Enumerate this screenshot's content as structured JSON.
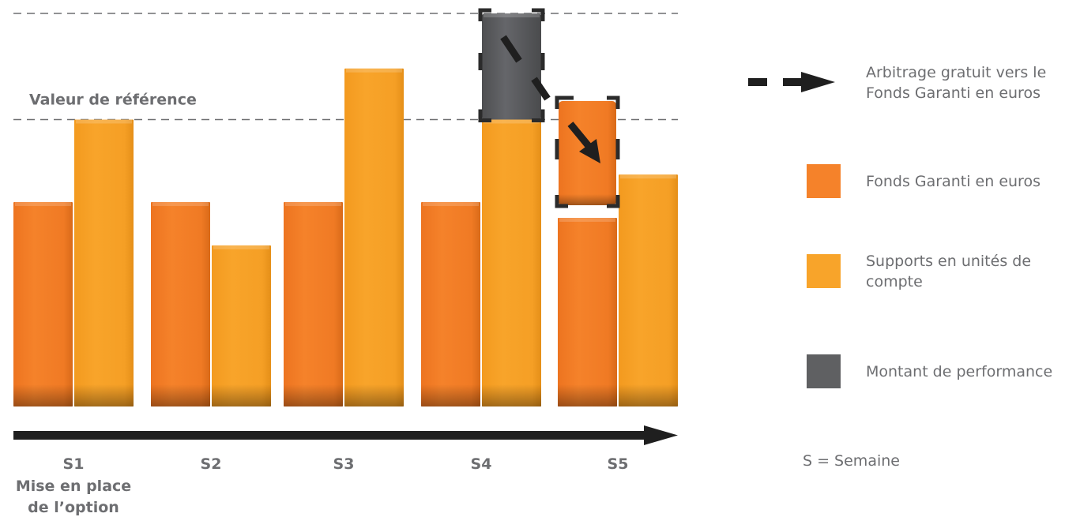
{
  "chart_data": {
    "type": "bar",
    "title": "",
    "xlabel": "",
    "ylabel": "",
    "categories": [
      "S1",
      "S2",
      "S3",
      "S4",
      "S5"
    ],
    "first_category_note": [
      "Mise en place",
      "de l’option"
    ],
    "ylim": [
      0,
      100
    ],
    "series": [
      {
        "name": "Fonds Garanti en euros",
        "color": "#f5822a",
        "values": [
          52,
          52,
          52,
          52,
          48
        ]
      },
      {
        "name": "Supports en unités de compte",
        "color": "#f8a42a",
        "values": [
          73,
          41,
          86,
          73,
          59
        ]
      },
      {
        "name": "Montant de performance",
        "color": "#5f6062",
        "stack_on": "Supports en unités de compte",
        "values": [
          0,
          0,
          0,
          27,
          0
        ]
      }
    ],
    "reference_lines": [
      {
        "label": "Valeur de référence",
        "value": 73
      },
      {
        "label": "",
        "value": 100
      }
    ],
    "annotations": [
      {
        "type": "transfer-arrow",
        "from": "S4",
        "to": "S5",
        "description": "Arbitrage gratuit vers le Fonds Garanti en euros"
      }
    ],
    "legend": {
      "placement": "right",
      "entries": [
        {
          "symbol": "dashed-arrow",
          "label": [
            "Arbitrage gratuit vers le",
            "Fonds Garanti en euros"
          ]
        },
        {
          "symbol": "square",
          "color": "#f5822a",
          "label": [
            "Fonds Garanti en euros"
          ]
        },
        {
          "symbol": "square",
          "color": "#f8a42a",
          "label": [
            "Supports en unités de",
            "compte"
          ]
        },
        {
          "symbol": "square",
          "color": "#5f6062",
          "label": [
            "Montant de performance"
          ]
        }
      ],
      "footnote": "S = Semaine"
    }
  }
}
